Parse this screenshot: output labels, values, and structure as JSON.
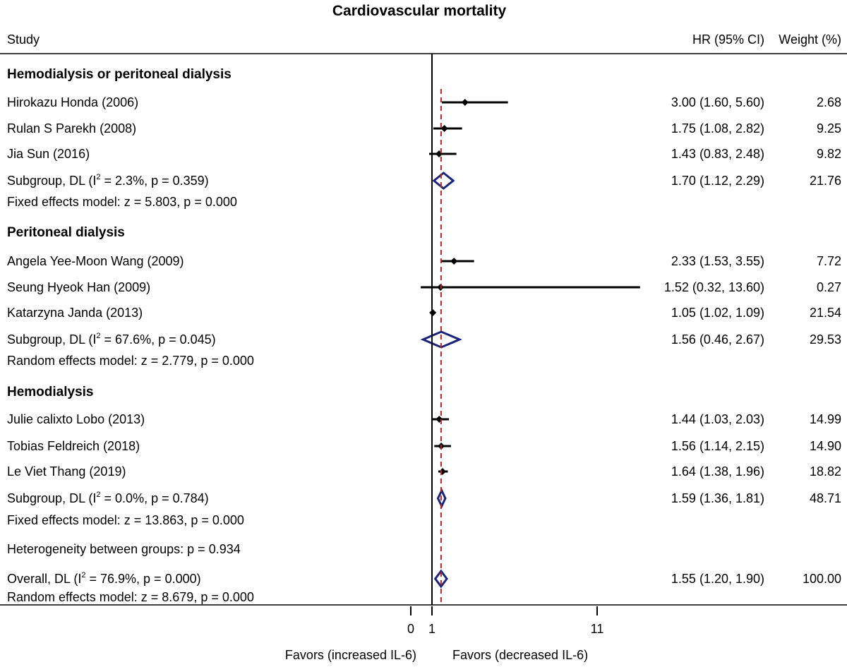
{
  "chart_data": {
    "type": "forest",
    "title": "Cardiovascular mortality",
    "columns": {
      "study": "Study",
      "hr": "HR (95% CI)",
      "weight": "Weight (%)"
    },
    "x_axis": {
      "ticks": [
        "0",
        "1",
        "11"
      ],
      "tick_values": [
        0,
        1,
        11
      ],
      "range": [
        -0.5,
        14
      ]
    },
    "favors_left": "Favors (increased IL-6)",
    "favors_right": "Favors (decreased IL-6)",
    "overall_reference": 1.55,
    "groups": [
      {
        "name": "Hemodialysis or peritoneal dialysis",
        "studies": [
          {
            "label": "Hirokazu Honda (2006)",
            "hr": 3.0,
            "lo": 1.6,
            "hi": 5.6,
            "hr_text": "3.00 (1.60, 5.60)",
            "weight": "2.68"
          },
          {
            "label": "Rulan S Parekh (2008)",
            "hr": 1.75,
            "lo": 1.08,
            "hi": 2.82,
            "hr_text": "1.75 (1.08, 2.82)",
            "weight": "9.25"
          },
          {
            "label": "Jia Sun (2016)",
            "hr": 1.43,
            "lo": 0.83,
            "hi": 2.48,
            "hr_text": "1.43 (0.83, 2.48)",
            "weight": "9.82"
          }
        ],
        "subgroup": {
          "prefix": "Subgroup, DL (I",
          "suffix": " = 2.3%, p = 0.359)",
          "hr": 1.7,
          "lo": 1.12,
          "hi": 2.29,
          "hr_text": "1.70 (1.12, 2.29)",
          "weight": "21.76"
        },
        "model": "Fixed effects model: z = 5.803, p = 0.000"
      },
      {
        "name": "Peritoneal dialysis",
        "studies": [
          {
            "label": "Angela Yee-Moon Wang (2009)",
            "hr": 2.33,
            "lo": 1.53,
            "hi": 3.55,
            "hr_text": "2.33 (1.53, 3.55)",
            "weight": "7.72"
          },
          {
            "label": "Seung Hyeok Han (2009)",
            "hr": 1.52,
            "lo": 0.32,
            "hi": 13.6,
            "hr_text": "1.52 (0.32, 13.60)",
            "weight": "0.27"
          },
          {
            "label": "Katarzyna Janda (2013)",
            "hr": 1.05,
            "lo": 1.02,
            "hi": 1.09,
            "hr_text": "1.05 (1.02, 1.09)",
            "weight": "21.54"
          }
        ],
        "subgroup": {
          "prefix": "Subgroup, DL (I",
          "suffix": " = 67.6%, p = 0.045)",
          "hr": 1.56,
          "lo": 0.46,
          "hi": 2.67,
          "hr_text": "1.56 (0.46, 2.67)",
          "weight": "29.53"
        },
        "model": "Random effects model: z = 2.779, p = 0.000"
      },
      {
        "name": "Hemodialysis",
        "studies": [
          {
            "label": "Julie calixto Lobo (2013)",
            "hr": 1.44,
            "lo": 1.03,
            "hi": 2.03,
            "hr_text": "1.44 (1.03, 2.03)",
            "weight": "14.99"
          },
          {
            "label": "Tobias Feldreich (2018)",
            "hr": 1.56,
            "lo": 1.14,
            "hi": 2.15,
            "hr_text": "1.56 (1.14, 2.15)",
            "weight": "14.90"
          },
          {
            "label": "Le Viet Thang (2019)",
            "hr": 1.64,
            "lo": 1.38,
            "hi": 1.96,
            "hr_text": "1.64 (1.38, 1.96)",
            "weight": "18.82"
          }
        ],
        "subgroup": {
          "prefix": "Subgroup, DL (I",
          "suffix": " = 0.0%, p = 0.784)",
          "hr": 1.59,
          "lo": 1.36,
          "hi": 1.81,
          "hr_text": "1.59 (1.36, 1.81)",
          "weight": "48.71"
        },
        "model": "Fixed effects model: z = 13.863, p = 0.000"
      }
    ],
    "heterogeneity": "Heterogeneity between groups: p = 0.934",
    "overall": {
      "prefix": "Overall, DL (I",
      "suffix": " = 76.9%, p = 0.000)",
      "hr": 1.55,
      "lo": 1.2,
      "hi": 1.9,
      "hr_text": "1.55 (1.20, 1.90)",
      "weight": "100.00"
    },
    "overall_model": "Random effects model: z = 8.679, p = 0.000",
    "superscript": "2",
    "colors": {
      "diamond": "#1a237e",
      "reference_line": "#a52a2a",
      "marker": "#000000"
    }
  }
}
